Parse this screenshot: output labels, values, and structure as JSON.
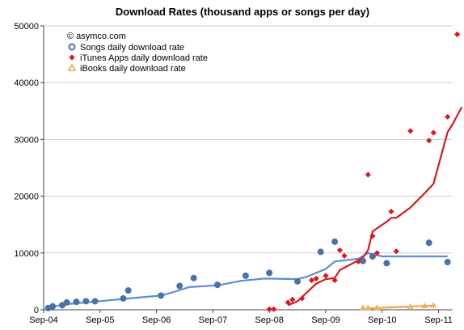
{
  "chart_data": {
    "type": "scatter",
    "title": "Download Rates (thousand apps or songs per day)",
    "annotation": "© asymco.com",
    "xlabel": "",
    "ylabel": "",
    "x_tick_labels": [
      "Sep-04",
      "Sep-05",
      "Sep-06",
      "Sep-07",
      "Sep-08",
      "Sep-09",
      "Sep-10",
      "Sep-11"
    ],
    "x_tick_values": [
      2004.67,
      2005.67,
      2006.67,
      2007.67,
      2008.67,
      2009.67,
      2010.67,
      2011.67
    ],
    "xlim": [
      2004.67,
      2011.92
    ],
    "ylim": [
      0,
      50000
    ],
    "y_ticks": [
      0,
      10000,
      20000,
      30000,
      40000,
      50000
    ],
    "grid": true,
    "legend_position": "top-left",
    "series": [
      {
        "name": "Songs daily download rate",
        "marker": "circle",
        "color": "#4a72a8",
        "line_color": "#5b8fcf",
        "points": [
          [
            2004.75,
            300
          ],
          [
            2004.83,
            600
          ],
          [
            2005.0,
            800
          ],
          [
            2005.08,
            1300
          ],
          [
            2005.25,
            1400
          ],
          [
            2005.42,
            1500
          ],
          [
            2005.58,
            1500
          ],
          [
            2006.08,
            2000
          ],
          [
            2006.17,
            3400
          ],
          [
            2006.75,
            2500
          ],
          [
            2007.08,
            4200
          ],
          [
            2007.33,
            5600
          ],
          [
            2007.75,
            4400
          ],
          [
            2008.25,
            6000
          ],
          [
            2008.67,
            6500
          ],
          [
            2009.17,
            5000
          ],
          [
            2009.58,
            10200
          ],
          [
            2009.83,
            12000
          ],
          [
            2010.33,
            8600
          ],
          [
            2010.5,
            9400
          ],
          [
            2010.75,
            8200
          ],
          [
            2011.5,
            11800
          ],
          [
            2011.83,
            8400
          ]
        ],
        "line": [
          [
            2004.75,
            300
          ],
          [
            2004.92,
            700
          ],
          [
            2005.08,
            1000
          ],
          [
            2005.42,
            1300
          ],
          [
            2005.75,
            1600
          ],
          [
            2006.17,
            2000
          ],
          [
            2006.75,
            2500
          ],
          [
            2007.0,
            3200
          ],
          [
            2007.25,
            4000
          ],
          [
            2007.75,
            4300
          ],
          [
            2008.17,
            5100
          ],
          [
            2008.58,
            5500
          ],
          [
            2009.17,
            5400
          ],
          [
            2009.33,
            5800
          ],
          [
            2009.67,
            7200
          ],
          [
            2009.83,
            8500
          ],
          [
            2010.25,
            9000
          ],
          [
            2010.42,
            10000
          ],
          [
            2010.67,
            9400
          ],
          [
            2011.17,
            9400
          ],
          [
            2011.83,
            9400
          ]
        ]
      },
      {
        "name": "iTunes Apps daily download rate",
        "marker": "diamond",
        "color": "#d8191f",
        "line_color": "#d8191f",
        "points": [
          [
            2008.67,
            100
          ],
          [
            2008.75,
            100
          ],
          [
            2009.0,
            1300
          ],
          [
            2009.08,
            1800
          ],
          [
            2009.25,
            2000
          ],
          [
            2009.42,
            5200
          ],
          [
            2009.5,
            5500
          ],
          [
            2009.67,
            6000
          ],
          [
            2009.83,
            5200
          ],
          [
            2009.92,
            10500
          ],
          [
            2010.0,
            9500
          ],
          [
            2010.25,
            8500
          ],
          [
            2010.42,
            23800
          ],
          [
            2010.5,
            13000
          ],
          [
            2010.58,
            10000
          ],
          [
            2010.83,
            17300
          ],
          [
            2010.92,
            10300
          ],
          [
            2011.17,
            31500
          ],
          [
            2011.5,
            29800
          ],
          [
            2011.58,
            31200
          ],
          [
            2011.83,
            34000
          ],
          [
            2012.0,
            48500
          ]
        ],
        "line": [
          [
            2009.0,
            800
          ],
          [
            2009.17,
            1500
          ],
          [
            2009.33,
            3000
          ],
          [
            2009.5,
            4600
          ],
          [
            2009.67,
            5400
          ],
          [
            2009.83,
            5600
          ],
          [
            2009.92,
            7000
          ],
          [
            2010.17,
            8300
          ],
          [
            2010.33,
            9200
          ],
          [
            2010.42,
            10500
          ],
          [
            2010.5,
            13800
          ],
          [
            2010.75,
            15500
          ],
          [
            2010.83,
            16200
          ],
          [
            2010.92,
            16200
          ],
          [
            2011.17,
            18000
          ],
          [
            2011.42,
            20500
          ],
          [
            2011.58,
            22200
          ],
          [
            2011.67,
            25500
          ],
          [
            2011.83,
            31300
          ],
          [
            2011.92,
            32700
          ],
          [
            2012.08,
            35700
          ]
        ]
      },
      {
        "name": "iBooks daily download rate",
        "marker": "triangle",
        "color": "#f0b45a",
        "line_color": "#f0a64a",
        "points": [
          [
            2010.33,
            400
          ],
          [
            2010.42,
            400
          ],
          [
            2010.58,
            400
          ],
          [
            2011.17,
            600
          ],
          [
            2011.42,
            700
          ],
          [
            2011.58,
            800
          ]
        ],
        "line": [
          [
            2010.33,
            200
          ],
          [
            2010.58,
            300
          ],
          [
            2011.0,
            500
          ],
          [
            2011.42,
            700
          ],
          [
            2011.58,
            700
          ]
        ]
      }
    ]
  }
}
